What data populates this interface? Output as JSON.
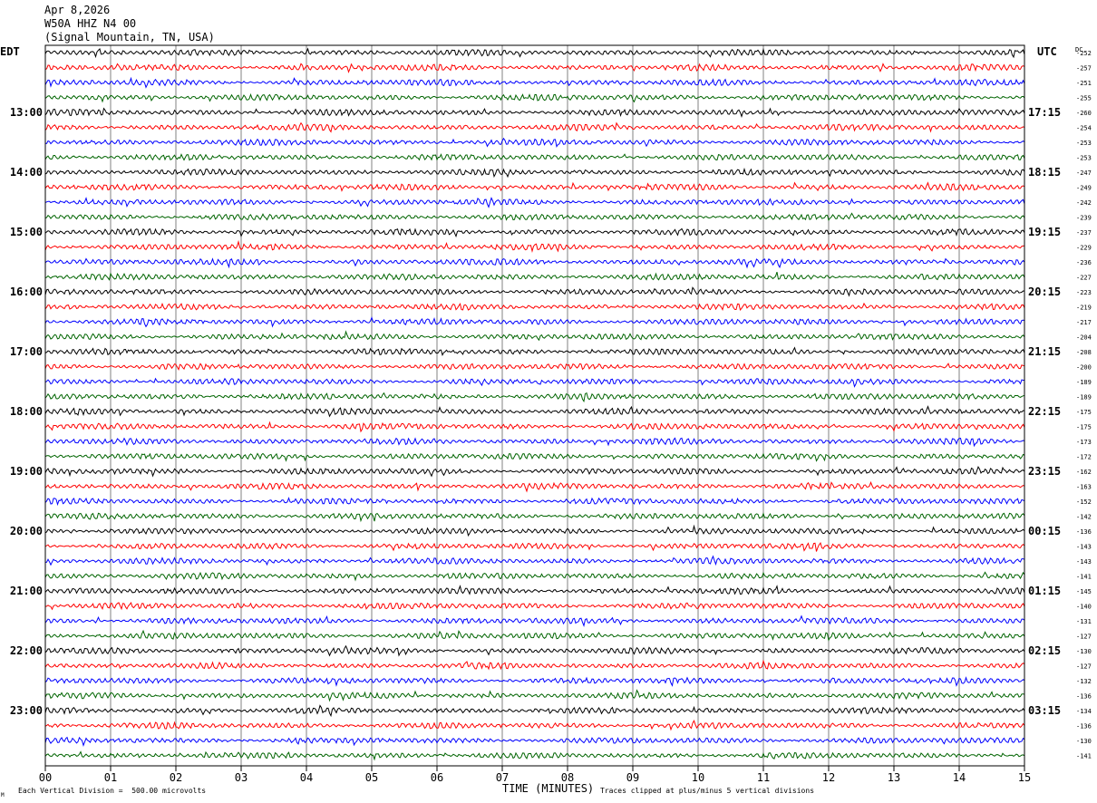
{
  "header": {
    "date": "Apr 8,2026",
    "station": "W50A HHZ N4 00",
    "location": "(Signal Mountain, TN, USA)",
    "left_tz": "EDT",
    "right_tz": "UTC",
    "dc_label": "DC"
  },
  "footer": {
    "scale_note": "Each Vertical Division =  500.00 microvolts",
    "clip_note": "Traces clipped at plus/minus 5 vertical divisions",
    "logo_mark": "M"
  },
  "chart_data": {
    "type": "line",
    "title": "W50A HHZ N4 00",
    "xlabel": "TIME (MINUTES)",
    "xlim": [
      0,
      15
    ],
    "x_ticks": [
      "00",
      "01",
      "02",
      "03",
      "04",
      "05",
      "06",
      "07",
      "08",
      "09",
      "10",
      "11",
      "12",
      "13",
      "14",
      "15"
    ],
    "trace_colors": [
      "#000000",
      "#ff0000",
      "#0000ff",
      "#006400"
    ],
    "left_hour_labels": [
      "13:00",
      "14:00",
      "15:00",
      "16:00",
      "17:00",
      "18:00",
      "19:00",
      "20:00",
      "21:00",
      "22:00",
      "23:00"
    ],
    "right_hour_labels": [
      "17:15",
      "18:15",
      "19:15",
      "20:15",
      "21:15",
      "22:15",
      "23:15",
      "00:15",
      "01:15",
      "02:15",
      "03:15"
    ],
    "dc_offsets": [
      "-252",
      "-257",
      "-251",
      "-255",
      "-260",
      "-254",
      "-253",
      "-253",
      "-247",
      "-249",
      "-242",
      "-239",
      "-237",
      "-229",
      "-236",
      "-227",
      "-223",
      "-219",
      "-217",
      "-204",
      "-208",
      "-200",
      "-189",
      "-189",
      "-175",
      "-175",
      "-173",
      "-172",
      "-162",
      "-163",
      "-152",
      "-142",
      "-136",
      "-143",
      "-143",
      "-141",
      "-145",
      "-140",
      "-131",
      "-127",
      "-130",
      "-127",
      "-132",
      "-136",
      "-134",
      "-136",
      "-130",
      "-141"
    ]
  }
}
